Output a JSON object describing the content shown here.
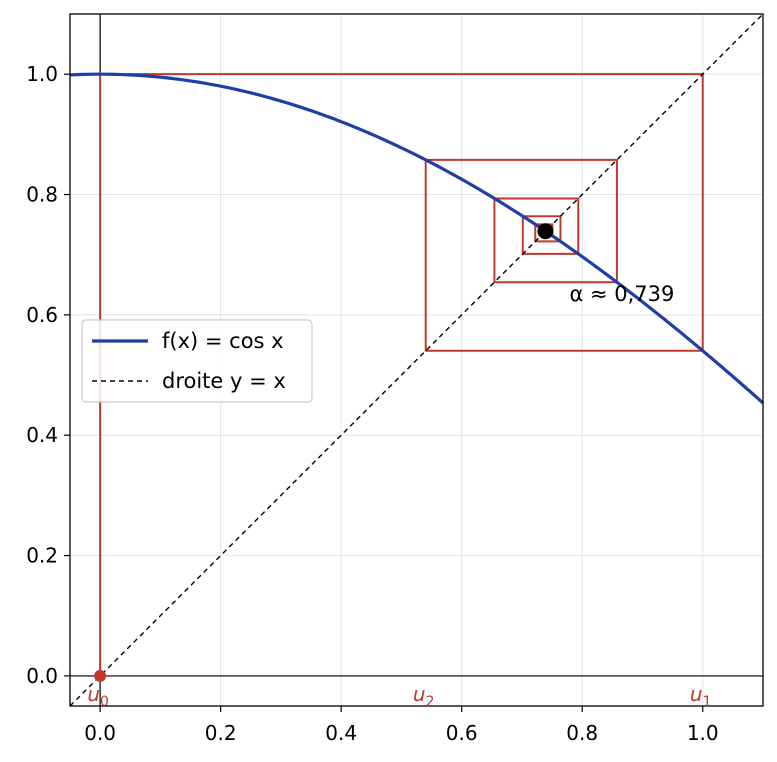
{
  "chart_data": {
    "type": "line",
    "title": "",
    "xlabel": "",
    "ylabel": "",
    "xlim": [
      -0.05,
      1.1
    ],
    "ylim": [
      -0.05,
      1.1
    ],
    "grid": true,
    "legend_position": "center-left",
    "x_ticks": [
      "0.0",
      "0.2",
      "0.4",
      "0.6",
      "0.8",
      "1.0"
    ],
    "y_ticks": [
      "0.0",
      "0.2",
      "0.4",
      "0.6",
      "0.8",
      "1.0"
    ],
    "series": [
      {
        "name": "f(x) = cos x",
        "function": "cos",
        "x_range": [
          -0.05,
          1.1
        ],
        "color": "#1f3fa8"
      },
      {
        "name": "droite y = x",
        "function": "identity",
        "x_range": [
          -0.05,
          1.1
        ],
        "color": "#000000",
        "style": "dashed"
      }
    ],
    "iterates": {
      "u0": 0.0,
      "count": 12,
      "color": "#c0392b",
      "labels": [
        {
          "text": "u",
          "sub": "0",
          "x": 0.0
        },
        {
          "text": "u",
          "sub": "2",
          "x": 0.5403
        },
        {
          "text": "u",
          "sub": "1",
          "x": 1.0
        }
      ]
    },
    "fixed_point": {
      "x": 0.739,
      "y": 0.739,
      "label": "α ≈ 0,739",
      "color": "#000000"
    }
  }
}
